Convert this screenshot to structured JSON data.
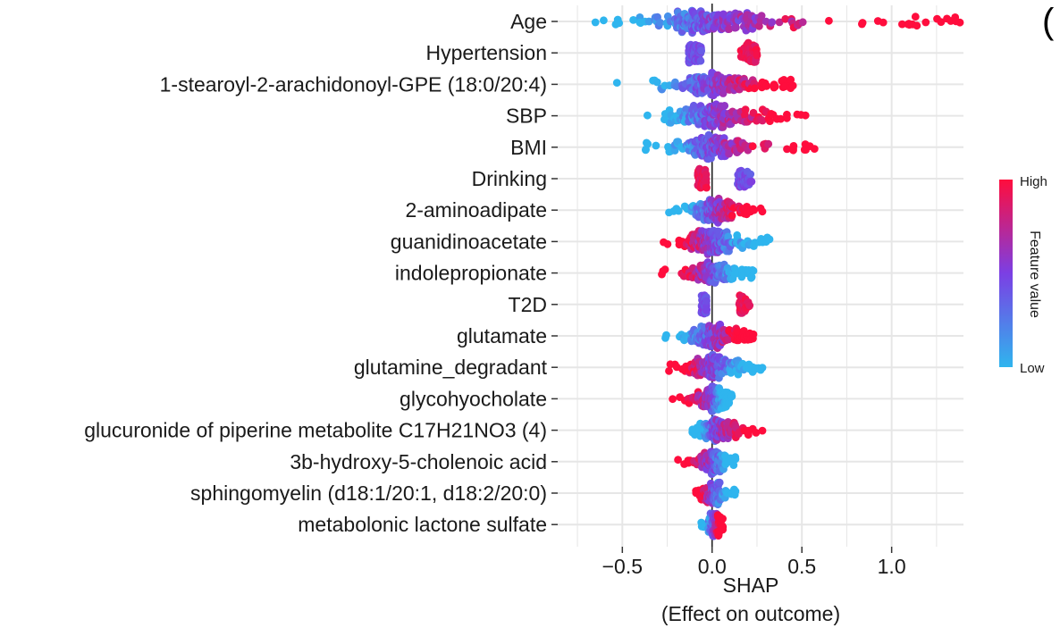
{
  "chart_data": {
    "type": "scatter",
    "subtype": "shap-beeswarm",
    "corner_mark": "(",
    "xlabel_line1": "SHAP",
    "xlabel_line2": "(Effect on outcome)",
    "xlim": [
      -0.86,
      1.4
    ],
    "xticks": [
      {
        "value": -0.5,
        "label": "-0.5"
      },
      {
        "value": 0.0,
        "label": "0.0"
      },
      {
        "value": 0.5,
        "label": "0.5"
      },
      {
        "value": 1.0,
        "label": "1.0"
      }
    ],
    "legend": {
      "title": "Feature value",
      "high_label": "High",
      "low_label": "Low",
      "position": "right",
      "gradient_colors": [
        "#2fb5ee",
        "#7b3fe4",
        "#ff0d3d"
      ]
    },
    "features": [
      {
        "name": "Age",
        "kind": "cont",
        "min": -0.65,
        "max": 1.38,
        "center": 0.0,
        "width": 0.95,
        "high_side": "right",
        "spread": 0.95,
        "n": 240
      },
      {
        "name": "Hypertension",
        "kind": "binary",
        "low_min": -0.13,
        "low_max": -0.06,
        "high_min": 0.16,
        "high_max": 0.25,
        "low_value_side": "left",
        "spread": 0.8,
        "n": 120
      },
      {
        "name": "1-stearoyl-2-arachidonoyl-GPE (18:0/20:4)",
        "kind": "cont",
        "min": -0.53,
        "max": 0.45,
        "center": 0.0,
        "width": 0.6,
        "high_side": "right",
        "spread": 0.9,
        "n": 170
      },
      {
        "name": "SBP",
        "kind": "cont",
        "min": -0.36,
        "max": 0.52,
        "center": 0.0,
        "width": 0.55,
        "high_side": "right",
        "spread": 0.95,
        "n": 170
      },
      {
        "name": "BMI",
        "kind": "cont",
        "min": -0.37,
        "max": 0.57,
        "center": 0.0,
        "width": 0.55,
        "high_side": "right",
        "spread": 0.95,
        "n": 170
      },
      {
        "name": "Drinking",
        "kind": "binary",
        "low_min": 0.14,
        "low_max": 0.22,
        "high_min": -0.08,
        "high_max": -0.03,
        "low_value_side": "right",
        "spread": 0.75,
        "n": 110
      },
      {
        "name": "2-aminoadipate",
        "kind": "cont",
        "min": -0.24,
        "max": 0.28,
        "center": 0.0,
        "width": 0.4,
        "high_side": "right",
        "spread": 0.95,
        "n": 160
      },
      {
        "name": "guanidinoacetate",
        "kind": "cont",
        "min": -0.27,
        "max": 0.32,
        "center": 0.0,
        "width": 0.4,
        "high_side": "left",
        "spread": 0.95,
        "n": 160
      },
      {
        "name": "indolepropionate",
        "kind": "cont",
        "min": -0.28,
        "max": 0.23,
        "center": 0.0,
        "width": 0.35,
        "high_side": "left",
        "spread": 0.85,
        "n": 150
      },
      {
        "name": "T2D",
        "kind": "binary",
        "low_min": -0.06,
        "low_max": -0.03,
        "high_min": 0.15,
        "high_max": 0.21,
        "low_value_side": "left",
        "spread": 0.7,
        "n": 90
      },
      {
        "name": "glutamate",
        "kind": "cont",
        "min": -0.26,
        "max": 0.23,
        "center": 0.0,
        "width": 0.35,
        "high_side": "right",
        "spread": 0.95,
        "n": 150
      },
      {
        "name": "glutamine_degradant",
        "kind": "cont",
        "min": -0.24,
        "max": 0.28,
        "center": 0.0,
        "width": 0.35,
        "high_side": "left",
        "spread": 0.95,
        "n": 150
      },
      {
        "name": "glycohyocholate",
        "kind": "cont",
        "min": -0.22,
        "max": 0.11,
        "center": 0.0,
        "width": 0.25,
        "high_side": "left",
        "spread": 0.95,
        "n": 130
      },
      {
        "name": "glucuronide of piperine metabolite C17H21NO3 (4)",
        "kind": "cont",
        "min": -0.11,
        "max": 0.28,
        "center": 0.02,
        "width": 0.3,
        "high_side": "right",
        "spread": 0.9,
        "n": 130
      },
      {
        "name": "3b-hydroxy-5-cholenoic acid",
        "kind": "cont",
        "min": -0.19,
        "max": 0.13,
        "center": 0.0,
        "width": 0.25,
        "high_side": "left",
        "spread": 0.95,
        "n": 120
      },
      {
        "name": "sphingomyelin (d18:1/20:1, d18:2/20:0)",
        "kind": "cont",
        "min": -0.09,
        "max": 0.13,
        "center": 0.0,
        "width": 0.2,
        "high_side": "left",
        "spread": 0.85,
        "n": 90
      },
      {
        "name": "metabolonic lactone sulfate",
        "kind": "cont",
        "min": -0.06,
        "max": 0.06,
        "center": 0.01,
        "width": 0.12,
        "high_side": "right",
        "spread": 0.9,
        "n": 70
      }
    ]
  }
}
